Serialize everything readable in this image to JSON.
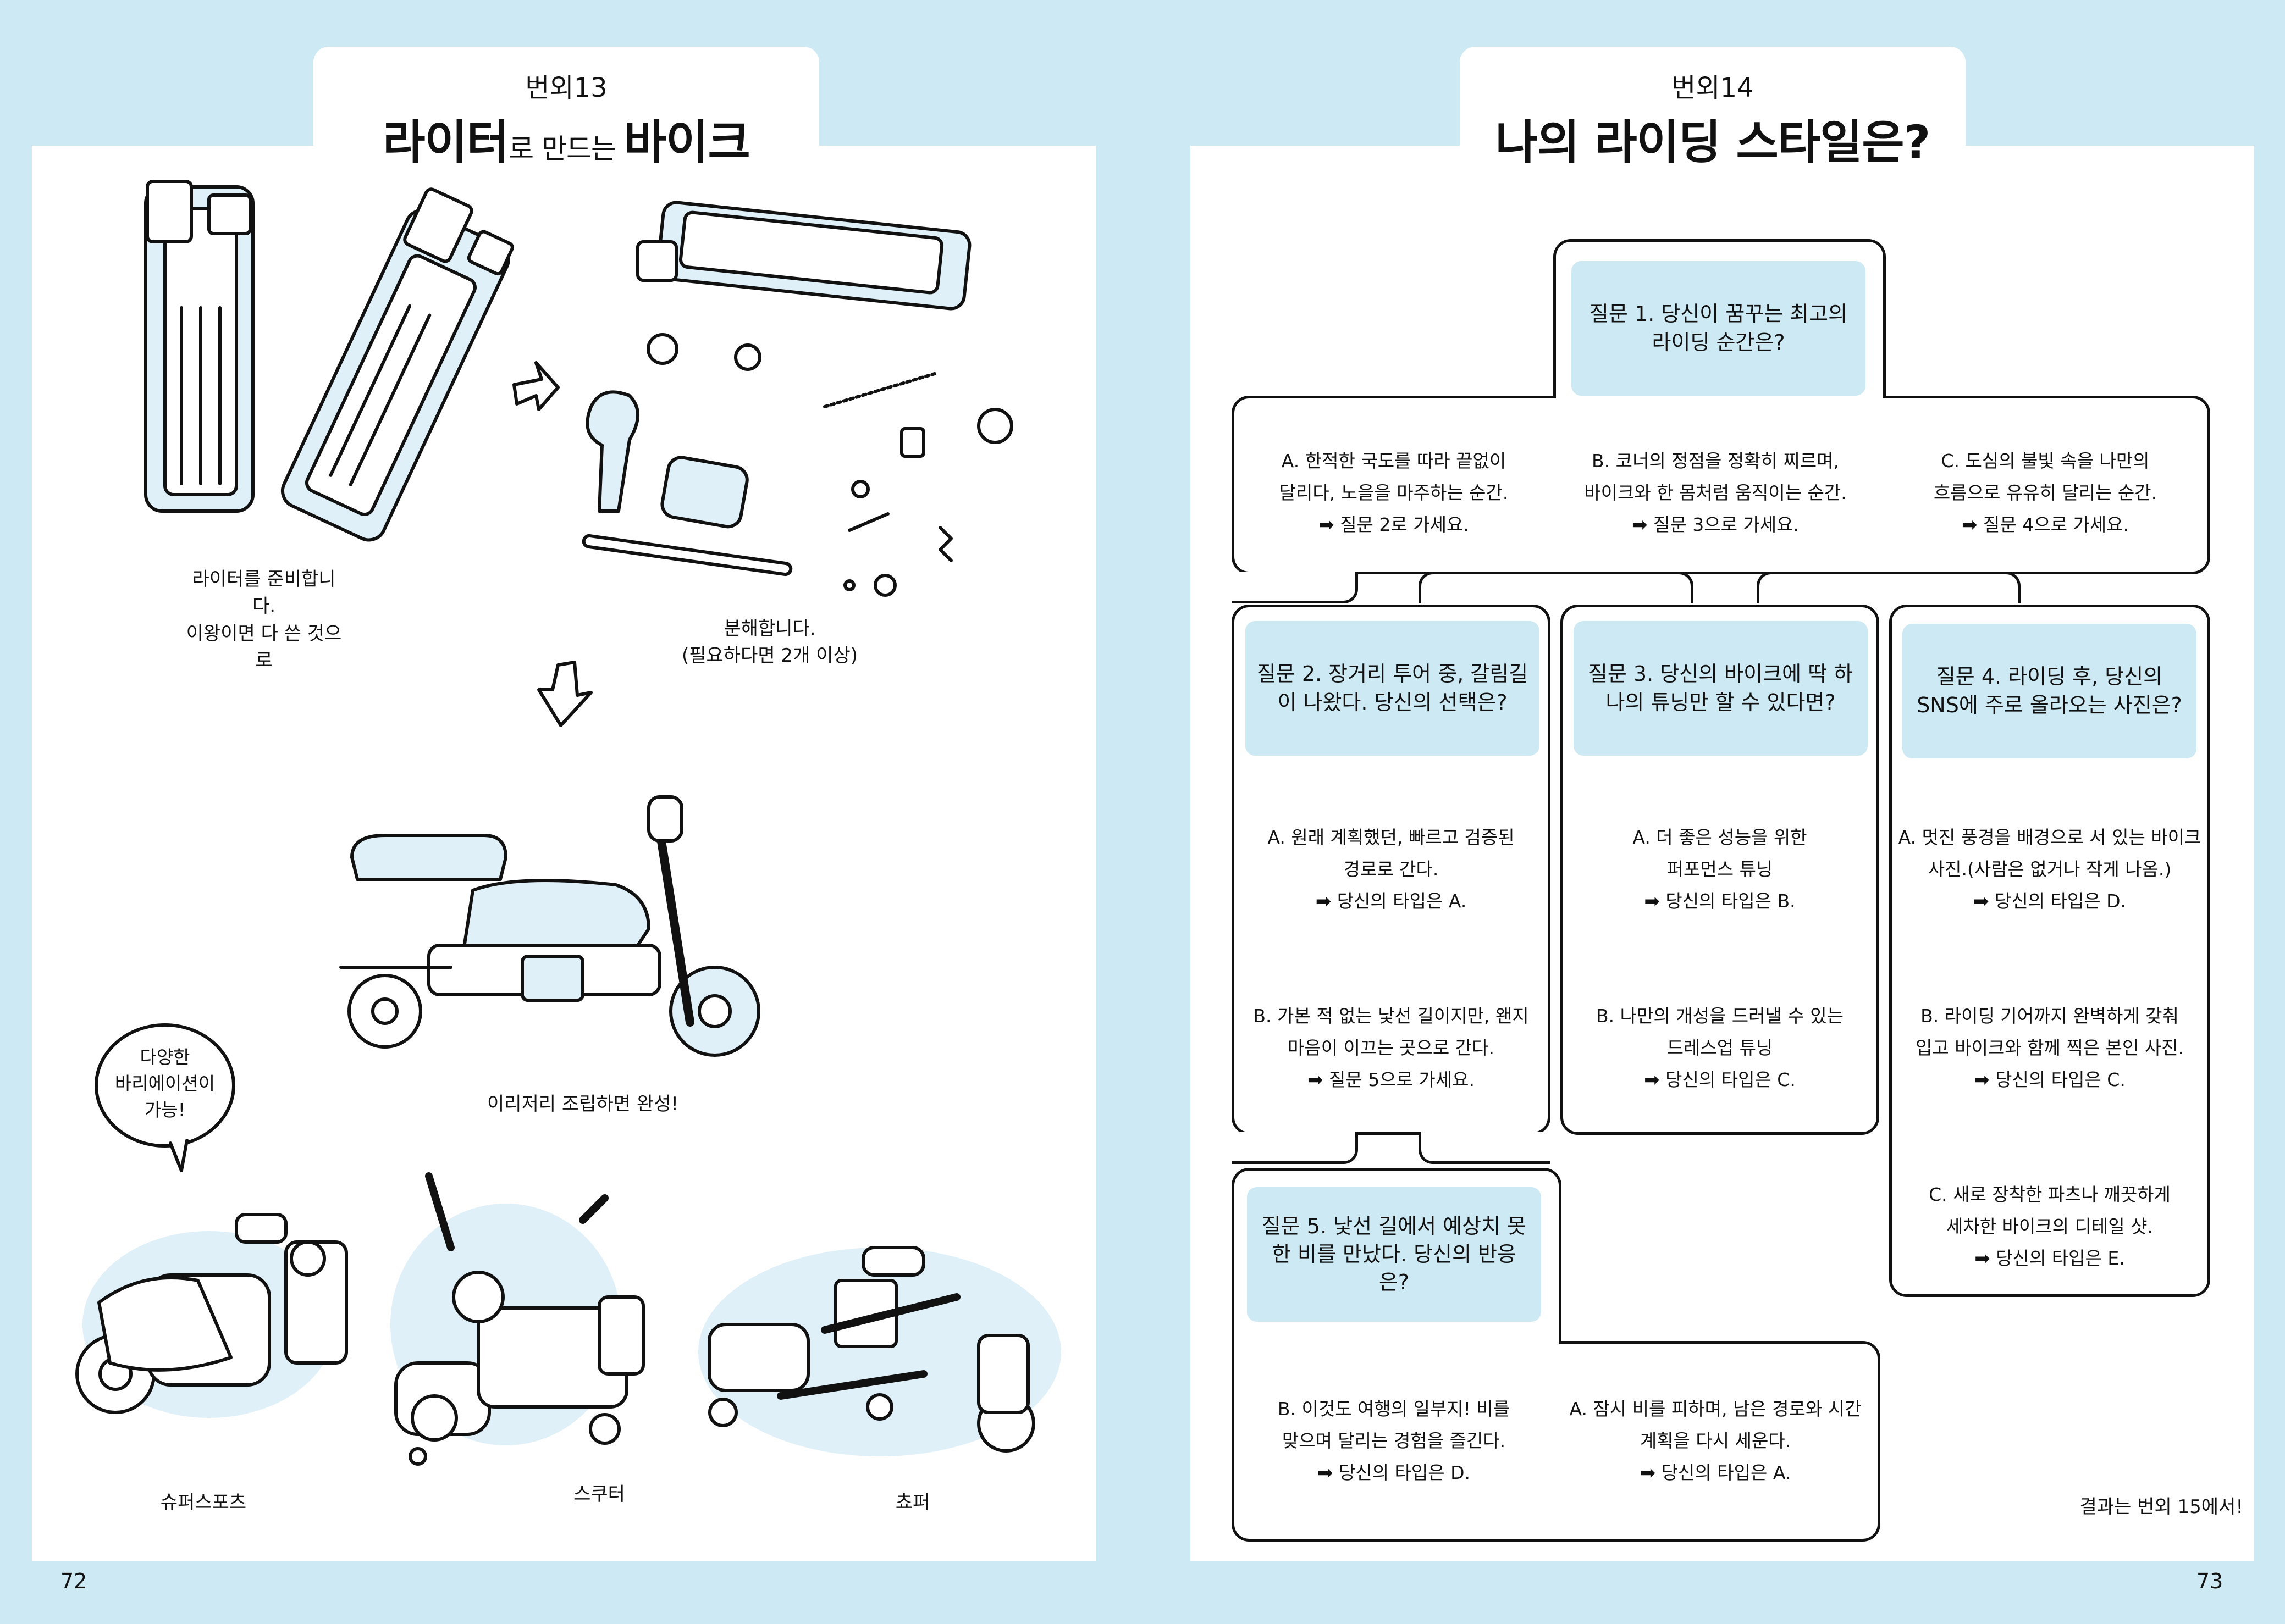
{
  "left": {
    "episode": "번외13",
    "title_a": "라이터",
    "title_b": "로 만드는 ",
    "title_c": "바이크",
    "caption_prepare_1": "라이터를 준비합니다.",
    "caption_prepare_2": "이왕이면 다 쓴 것으로",
    "caption_disassemble_1": "분해합니다.",
    "caption_disassemble_2": "(필요하다면 2개 이상)",
    "caption_assemble": "이리저리 조립하면 완성!",
    "bubble_1": "다양한",
    "bubble_2": "바리에이션이",
    "bubble_3": "가능!",
    "variant_1": "슈퍼스포츠",
    "variant_2": "스쿠터",
    "variant_3": "쵸퍼",
    "page_number": "72"
  },
  "right": {
    "episode": "번외14",
    "title": "나의 라이딩 스타일은?",
    "q1": "질문 1. 당신이 꿈꾸는 최고의 라이딩 순간은?",
    "q1_a_1": "A. 한적한 국도를 따라 끝없이",
    "q1_a_2": "달리다, 노을을 마주하는 순간.",
    "q1_a_go": "질문 2로 가세요.",
    "q1_b_1": "B. 코너의 정점을 정확히 찌르며,",
    "q1_b_2": "바이크와 한 몸처럼 움직이는 순간.",
    "q1_b_go": "질문 3으로 가세요.",
    "q1_c_1": "C. 도심의 불빛 속을 나만의",
    "q1_c_2": "흐름으로 유유히 달리는 순간.",
    "q1_c_go": "질문 4으로 가세요.",
    "q2": "질문 2. 장거리 투어 중, 갈림길이 나왔다. 당신의 선택은?",
    "q2_a_1": "A. 원래 계획했던, 빠르고 검증된",
    "q2_a_2": "경로로 간다.",
    "q2_a_go": "당신의 타입은 A.",
    "q2_b_1": "B. 가본 적 없는 낯선 길이지만, 왠지",
    "q2_b_2": "마음이 이끄는 곳으로 간다.",
    "q2_b_go": "질문 5으로 가세요.",
    "q3": "질문 3. 당신의 바이크에 딱 하나의 튜닝만 할 수 있다면?",
    "q3_a_1": "A. 더 좋은 성능을 위한",
    "q3_a_2": "퍼포먼스 튜닝",
    "q3_a_go": "당신의 타입은 B.",
    "q3_b_1": "B. 나만의 개성을 드러낼 수 있는",
    "q3_b_2": "드레스업 튜닝",
    "q3_b_go": "당신의 타입은 C.",
    "q4": "질문 4.  라이딩 후, 당신의 SNS에 주로 올라오는 사진은?",
    "q4_a_1": "A. 멋진 풍경을 배경으로 서 있는 바이크",
    "q4_a_2": "사진.(사람은 없거나 작게 나옴.)",
    "q4_a_go": "당신의 타입은 D.",
    "q4_b_1": "B. 라이딩 기어까지 완벽하게 갖춰",
    "q4_b_2": "입고 바이크와 함께 찍은 본인 사진.",
    "q4_b_go": "당신의 타입은 C.",
    "q4_c_1": "C. 새로 장착한 파츠나 깨끗하게",
    "q4_c_2": "세차한 바이크의 디테일 샷.",
    "q4_c_go": "당신의 타입은 E.",
    "q5": "질문 5. 낯선 길에서 예상치 못한 비를 만났다. 당신의 반응은?",
    "q5_b_1": "B. 이것도 여행의 일부지! 비를",
    "q5_b_2": "맞으며 달리는 경험을 즐긴다.",
    "q5_b_go": "당신의 타입은 D.",
    "q5_a_1": "A. 잠시 비를 피하며, 남은 경로와 시간",
    "q5_a_2": "계획을 다시 세운다.",
    "q5_a_go": "당신의 타입은 A.",
    "footer_note": "결과는 번외 15에서!",
    "page_number": "73"
  },
  "colors": {
    "background": "#cde9f4",
    "accent": "#cde9f4",
    "ink": "#111111"
  }
}
